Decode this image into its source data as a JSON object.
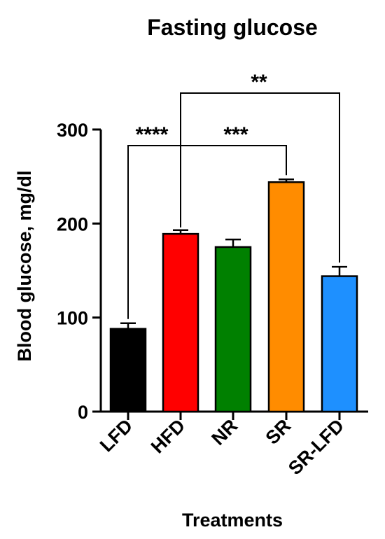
{
  "chart_data": {
    "type": "bar",
    "title": "Fasting glucose",
    "xlabel": "Treatments",
    "ylabel": "Blood glucose, mg/dl",
    "ylim": [
      0,
      300
    ],
    "yticks": [
      0,
      100,
      200,
      300
    ],
    "categories": [
      "LFD",
      "HFD",
      "NR",
      "SR",
      "SR-LFD"
    ],
    "values": [
      88,
      189,
      175,
      244,
      144
    ],
    "errors": [
      6,
      4,
      8,
      3,
      10
    ],
    "colors": [
      "#000000",
      "#ff0000",
      "#008000",
      "#ff8c00",
      "#1e90ff"
    ],
    "grid": false,
    "legend": "none",
    "significance": [
      {
        "from": "HFD",
        "to": "LFD",
        "label": "****"
      },
      {
        "from": "HFD",
        "to": "SR",
        "label": "***"
      },
      {
        "from": "HFD",
        "to": "SR-LFD",
        "label": "**"
      }
    ]
  }
}
